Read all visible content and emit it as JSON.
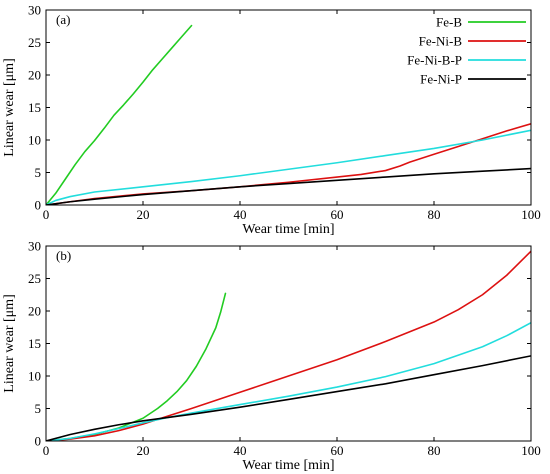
{
  "colors": {
    "fe_b": "#22cc22",
    "fe_ni_b": "#dd1111",
    "fe_ni_b_p": "#22dddd",
    "fe_ni_p": "#000000"
  },
  "legend": {
    "placement": "top-right of panel (a)",
    "entries": [
      {
        "label": "Fe-B",
        "color": "#22cc22"
      },
      {
        "label": "Fe-Ni-B",
        "color": "#dd1111"
      },
      {
        "label": "Fe-Ni-B-P",
        "color": "#22dddd"
      },
      {
        "label": "Fe-Ni-P",
        "color": "#000000"
      }
    ]
  },
  "chart_data": [
    {
      "type": "line",
      "panel_label": "(a)",
      "xlabel": "Wear time [min]",
      "ylabel": "Linear wear [μm]",
      "xlim": [
        0,
        100
      ],
      "ylim": [
        0,
        30
      ],
      "xticks": [
        0,
        20,
        40,
        60,
        80,
        100
      ],
      "yticks": [
        0,
        5,
        10,
        15,
        20,
        25,
        30
      ],
      "grid": false,
      "series": [
        {
          "name": "Fe-B",
          "color": "#22cc22",
          "x": [
            0,
            2,
            4,
            6,
            8,
            10,
            12,
            14,
            16,
            18,
            20,
            22,
            24,
            26,
            28,
            30
          ],
          "y": [
            0,
            1.8,
            4.0,
            6.2,
            8.2,
            9.9,
            11.8,
            13.8,
            15.4,
            17.1,
            18.9,
            20.8,
            22.5,
            24.2,
            25.9,
            27.6
          ]
        },
        {
          "name": "Fe-Ni-B",
          "color": "#dd1111",
          "x": [
            0,
            5,
            10,
            20,
            30,
            40,
            50,
            60,
            65,
            70,
            73,
            75,
            80,
            85,
            90,
            95,
            100
          ],
          "y": [
            0,
            0.5,
            1.0,
            1.7,
            2.2,
            2.8,
            3.5,
            4.3,
            4.7,
            5.3,
            6.0,
            6.6,
            7.8,
            9.0,
            10.2,
            11.4,
            12.5
          ]
        },
        {
          "name": "Fe-Ni-B-P",
          "color": "#22dddd",
          "x": [
            0,
            2,
            5,
            10,
            20,
            30,
            40,
            50,
            60,
            70,
            80,
            90,
            100
          ],
          "y": [
            0,
            0.7,
            1.3,
            2.0,
            2.8,
            3.6,
            4.5,
            5.5,
            6.5,
            7.6,
            8.7,
            10.0,
            11.5
          ]
        },
        {
          "name": "Fe-Ni-P",
          "color": "#000000",
          "x": [
            0,
            5,
            10,
            20,
            30,
            40,
            50,
            60,
            70,
            80,
            90,
            100
          ],
          "y": [
            0,
            0.5,
            0.9,
            1.6,
            2.2,
            2.8,
            3.3,
            3.8,
            4.3,
            4.8,
            5.2,
            5.6
          ]
        }
      ]
    },
    {
      "type": "line",
      "panel_label": "(b)",
      "xlabel": "Wear time [min]",
      "ylabel": "Linear wear [μm]",
      "xlim": [
        0,
        100
      ],
      "ylim": [
        0,
        30
      ],
      "xticks": [
        0,
        20,
        40,
        60,
        80,
        100
      ],
      "yticks": [
        0,
        5,
        10,
        15,
        20,
        25,
        30
      ],
      "grid": false,
      "series": [
        {
          "name": "Fe-B",
          "color": "#22cc22",
          "x": [
            0,
            5,
            10,
            15,
            20,
            23,
            25,
            27,
            29,
            31,
            33,
            35,
            36,
            37
          ],
          "y": [
            0,
            0.4,
            1.0,
            2.0,
            3.5,
            5.0,
            6.2,
            7.6,
            9.3,
            11.5,
            14.2,
            17.4,
            19.8,
            22.7
          ]
        },
        {
          "name": "Fe-Ni-B",
          "color": "#dd1111",
          "x": [
            0,
            5,
            10,
            15,
            20,
            25,
            30,
            40,
            50,
            60,
            70,
            80,
            85,
            90,
            95,
            100
          ],
          "y": [
            0,
            0.3,
            0.8,
            1.6,
            2.6,
            3.8,
            5.0,
            7.5,
            10.0,
            12.5,
            15.3,
            18.3,
            20.2,
            22.5,
            25.5,
            29.2
          ]
        },
        {
          "name": "Fe-Ni-B-P",
          "color": "#22dddd",
          "x": [
            0,
            5,
            10,
            15,
            20,
            25,
            30,
            40,
            50,
            60,
            70,
            80,
            90,
            95,
            100
          ],
          "y": [
            0,
            0.4,
            1.1,
            1.9,
            2.8,
            3.6,
            4.3,
            5.6,
            6.9,
            8.3,
            9.9,
            11.9,
            14.5,
            16.2,
            18.2
          ]
        },
        {
          "name": "Fe-Ni-P",
          "color": "#000000",
          "x": [
            0,
            5,
            10,
            15,
            20,
            25,
            30,
            40,
            50,
            60,
            70,
            80,
            90,
            100
          ],
          "y": [
            0,
            1.0,
            1.8,
            2.5,
            3.1,
            3.6,
            4.1,
            5.2,
            6.4,
            7.6,
            8.8,
            10.2,
            11.6,
            13.1
          ]
        }
      ]
    }
  ]
}
